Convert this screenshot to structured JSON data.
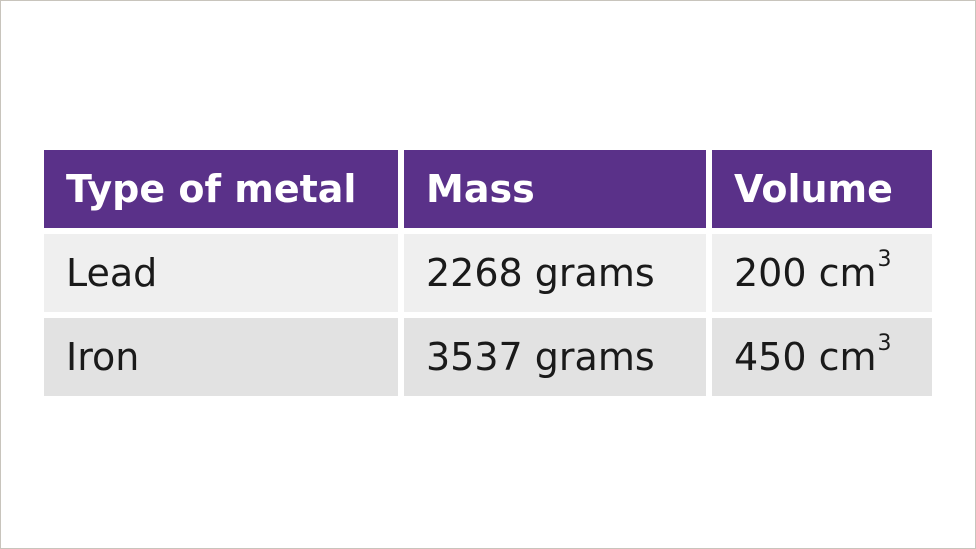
{
  "table": {
    "headers": [
      "Type of metal",
      "Mass",
      "Volume"
    ],
    "rows": [
      {
        "metal": "Lead",
        "mass": "2268 grams",
        "volume_value": "200 cm",
        "volume_exponent": "3"
      },
      {
        "metal": "Iron",
        "mass": "3537 grams",
        "volume_value": "450 cm",
        "volume_exponent": "3"
      }
    ]
  },
  "colors": {
    "header_background": "#5a3189",
    "header_text": "#ffffff",
    "row_1_background": "#efefef",
    "row_2_background": "#e2e2e2",
    "body_text": "#1a1a1a"
  }
}
